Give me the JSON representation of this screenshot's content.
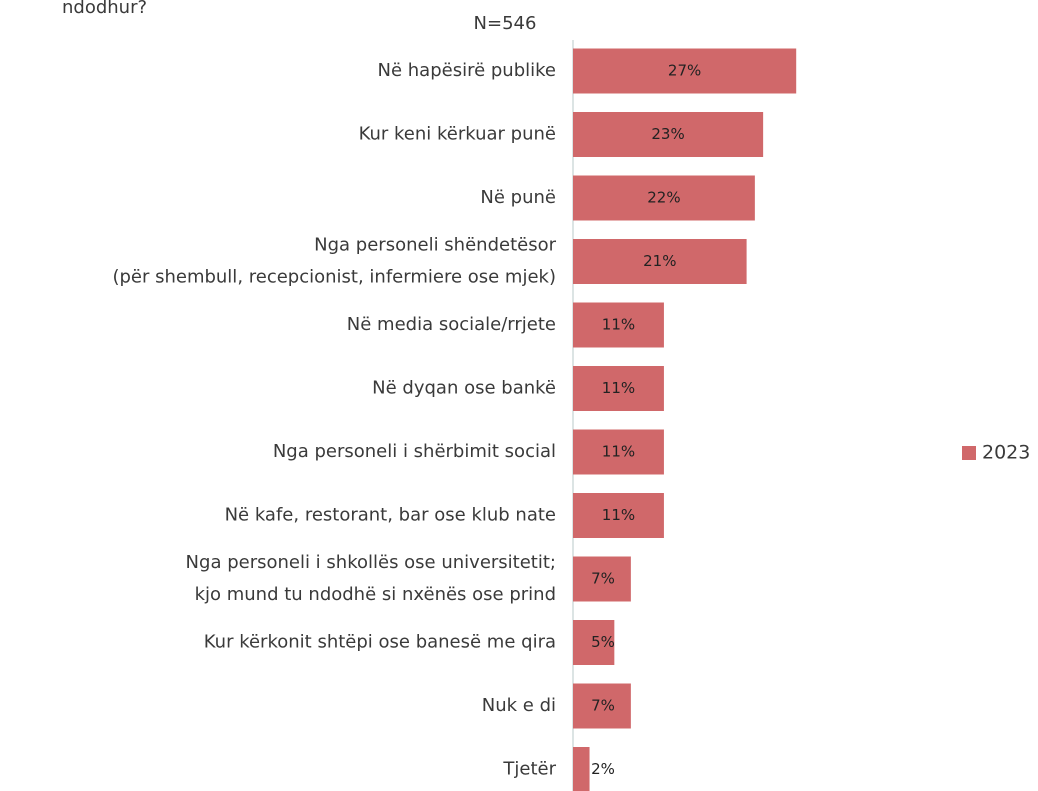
{
  "chart_data": {
    "type": "barh",
    "title": "ndodhur?",
    "subtitle": "N=546",
    "categories": [
      "Në hapësirë publike",
      "Kur keni kërkuar punë",
      "Në punë",
      "Nga personeli shëndetësor\n(për shembull, recepcionist, infermiere ose mjek)",
      "Në media sociale/rrjete",
      "Në dyqan ose bankë",
      "Nga personeli i shërbimit social",
      "Në kafe, restorant, bar ose klub nate",
      "Nga personeli i shkollës ose universitetit;\nkjo mund tu ndodhë si nxënës ose prind",
      "Kur kërkonit shtëpi ose banesë me qira",
      "Nuk e di",
      "Tjetër"
    ],
    "series": [
      {
        "name": "2023",
        "color": "#d0686a",
        "values": [
          27,
          23,
          22,
          21,
          11,
          11,
          11,
          11,
          7,
          5,
          7,
          2
        ],
        "value_labels": [
          "27%",
          "23%",
          "22%",
          "21%",
          "11%",
          "11%",
          "11%",
          "11%",
          "7%",
          "5%",
          "7%",
          "2%"
        ]
      }
    ],
    "xlim": [
      0,
      30
    ],
    "legend": "right"
  }
}
